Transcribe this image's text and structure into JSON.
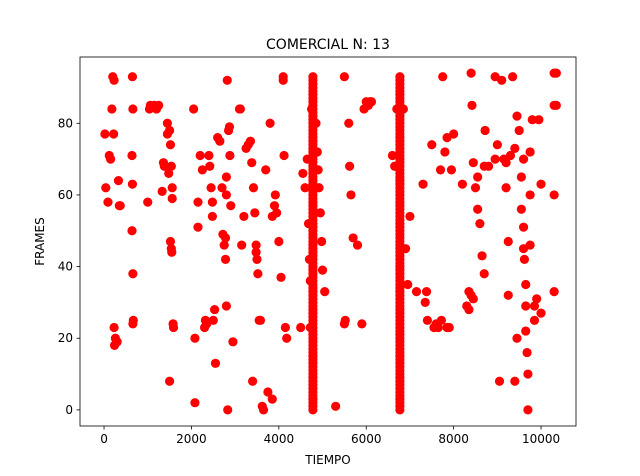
{
  "chart_data": {
    "type": "scatter",
    "title": "COMERCIAL N: 13",
    "xlabel": "TIEMPO",
    "ylabel": "FRAMES",
    "xlim": [
      -550,
      10800
    ],
    "ylim": [
      -4.5,
      98.5
    ],
    "xticks": [
      0,
      2000,
      4000,
      6000,
      8000,
      10000
    ],
    "yticks": [
      0,
      20,
      40,
      60,
      80
    ],
    "grid": false,
    "marker_color": "#ff0000",
    "columns": [
      {
        "x": 4780,
        "y_from": 0,
        "y_to": 93
      },
      {
        "x": 6770,
        "y_from": 0,
        "y_to": 93
      }
    ],
    "points": [
      [
        20,
        77
      ],
      [
        40,
        62
      ],
      [
        90,
        58
      ],
      [
        120,
        71
      ],
      [
        150,
        70
      ],
      [
        180,
        84
      ],
      [
        220,
        77
      ],
      [
        200,
        93
      ],
      [
        230,
        92
      ],
      [
        230,
        23
      ],
      [
        240,
        18
      ],
      [
        260,
        20
      ],
      [
        300,
        19
      ],
      [
        330,
        64
      ],
      [
        350,
        57
      ],
      [
        370,
        57
      ],
      [
        650,
        93
      ],
      [
        660,
        84
      ],
      [
        640,
        71
      ],
      [
        650,
        63
      ],
      [
        640,
        50
      ],
      [
        660,
        38
      ],
      [
        670,
        25
      ],
      [
        660,
        24
      ],
      [
        1000,
        58
      ],
      [
        1040,
        84
      ],
      [
        1060,
        85
      ],
      [
        1150,
        85
      ],
      [
        1200,
        84
      ],
      [
        1250,
        85
      ],
      [
        1330,
        61
      ],
      [
        1360,
        69
      ],
      [
        1380,
        68
      ],
      [
        1450,
        80
      ],
      [
        1450,
        77
      ],
      [
        1480,
        66
      ],
      [
        1500,
        78
      ],
      [
        1520,
        74
      ],
      [
        1540,
        68
      ],
      [
        1560,
        62
      ],
      [
        1560,
        59
      ],
      [
        1520,
        47
      ],
      [
        1540,
        45
      ],
      [
        1550,
        44
      ],
      [
        1580,
        24
      ],
      [
        1590,
        23
      ],
      [
        1500,
        8
      ],
      [
        2050,
        84
      ],
      [
        2080,
        20
      ],
      [
        2080,
        2
      ],
      [
        2150,
        58
      ],
      [
        2150,
        51
      ],
      [
        2200,
        71
      ],
      [
        2250,
        67
      ],
      [
        2300,
        23
      ],
      [
        2320,
        25
      ],
      [
        2350,
        24
      ],
      [
        2400,
        71
      ],
      [
        2420,
        68
      ],
      [
        2450,
        62
      ],
      [
        2480,
        58
      ],
      [
        2480,
        54
      ],
      [
        2500,
        25
      ],
      [
        2530,
        28
      ],
      [
        2550,
        13
      ],
      [
        2600,
        76
      ],
      [
        2650,
        75
      ],
      [
        2700,
        62
      ],
      [
        2720,
        49
      ],
      [
        2750,
        46
      ],
      [
        2780,
        48
      ],
      [
        2780,
        42
      ],
      [
        2800,
        65
      ],
      [
        2800,
        60
      ],
      [
        2800,
        29
      ],
      [
        2820,
        92
      ],
      [
        2830,
        0
      ],
      [
        2850,
        78
      ],
      [
        2870,
        79
      ],
      [
        2880,
        71
      ],
      [
        2900,
        57
      ],
      [
        2950,
        19
      ],
      [
        3100,
        84
      ],
      [
        3120,
        84
      ],
      [
        3150,
        46
      ],
      [
        3200,
        54
      ],
      [
        3250,
        73
      ],
      [
        3300,
        74
      ],
      [
        3350,
        75
      ],
      [
        3380,
        69
      ],
      [
        3400,
        8
      ],
      [
        3420,
        62
      ],
      [
        3450,
        55
      ],
      [
        3480,
        46
      ],
      [
        3480,
        44
      ],
      [
        3500,
        42
      ],
      [
        3520,
        38
      ],
      [
        3550,
        25
      ],
      [
        3580,
        25
      ],
      [
        3620,
        1
      ],
      [
        3650,
        0
      ],
      [
        3700,
        67
      ],
      [
        3750,
        5
      ],
      [
        3800,
        80
      ],
      [
        3850,
        54
      ],
      [
        3850,
        3
      ],
      [
        3900,
        57
      ],
      [
        3920,
        60
      ],
      [
        3950,
        55
      ],
      [
        4000,
        47
      ],
      [
        4050,
        37
      ],
      [
        4100,
        92
      ],
      [
        4100,
        93
      ],
      [
        4120,
        71
      ],
      [
        4150,
        23
      ],
      [
        4180,
        20
      ],
      [
        4500,
        23
      ],
      [
        4550,
        66
      ],
      [
        4600,
        62
      ],
      [
        4650,
        70
      ],
      [
        4680,
        52
      ],
      [
        4700,
        42
      ],
      [
        4720,
        36
      ],
      [
        4720,
        23
      ],
      [
        4750,
        84
      ],
      [
        4850,
        80
      ],
      [
        4880,
        72
      ],
      [
        4900,
        67
      ],
      [
        4920,
        62
      ],
      [
        4950,
        55
      ],
      [
        4980,
        47
      ],
      [
        5000,
        39
      ],
      [
        5050,
        33
      ],
      [
        5300,
        1
      ],
      [
        5500,
        93
      ],
      [
        5500,
        24
      ],
      [
        5520,
        25
      ],
      [
        5600,
        80
      ],
      [
        5620,
        68
      ],
      [
        5650,
        60
      ],
      [
        5700,
        48
      ],
      [
        5800,
        46
      ],
      [
        5900,
        24
      ],
      [
        5950,
        84
      ],
      [
        6000,
        86
      ],
      [
        6050,
        85
      ],
      [
        6080,
        86
      ],
      [
        6120,
        86
      ],
      [
        6600,
        71
      ],
      [
        6650,
        68
      ],
      [
        6700,
        84
      ],
      [
        6850,
        84
      ],
      [
        6900,
        45
      ],
      [
        6950,
        35
      ],
      [
        7000,
        54
      ],
      [
        7150,
        33
      ],
      [
        7300,
        63
      ],
      [
        7350,
        30
      ],
      [
        7380,
        33
      ],
      [
        7400,
        25
      ],
      [
        7500,
        74
      ],
      [
        7550,
        23
      ],
      [
        7600,
        24
      ],
      [
        7650,
        23
      ],
      [
        7700,
        67
      ],
      [
        7720,
        25
      ],
      [
        7750,
        93
      ],
      [
        7800,
        72
      ],
      [
        7850,
        76
      ],
      [
        7850,
        23
      ],
      [
        7900,
        23
      ],
      [
        7950,
        67
      ],
      [
        8000,
        77
      ],
      [
        8200,
        63
      ],
      [
        8300,
        29
      ],
      [
        8350,
        28
      ],
      [
        8350,
        33
      ],
      [
        8400,
        94
      ],
      [
        8420,
        85
      ],
      [
        8450,
        69
      ],
      [
        8500,
        62
      ],
      [
        8550,
        56
      ],
      [
        8600,
        52
      ],
      [
        8650,
        43
      ],
      [
        8700,
        38
      ],
      [
        8400,
        32
      ],
      [
        8450,
        31
      ],
      [
        8700,
        68
      ],
      [
        8720,
        78
      ],
      [
        8550,
        65
      ],
      [
        8800,
        68
      ],
      [
        8950,
        93
      ],
      [
        8950,
        70
      ],
      [
        9000,
        74
      ],
      [
        9050,
        8
      ],
      [
        9100,
        92
      ],
      [
        9150,
        70
      ],
      [
        9200,
        69
      ],
      [
        9200,
        62
      ],
      [
        9250,
        47
      ],
      [
        9250,
        32
      ],
      [
        9300,
        71
      ],
      [
        9350,
        93
      ],
      [
        9400,
        8
      ],
      [
        9400,
        73
      ],
      [
        9450,
        82
      ],
      [
        9450,
        20
      ],
      [
        9500,
        78
      ],
      [
        9550,
        65
      ],
      [
        9550,
        56
      ],
      [
        9600,
        70
      ],
      [
        9600,
        51
      ],
      [
        9600,
        45
      ],
      [
        9620,
        42
      ],
      [
        9650,
        35
      ],
      [
        9650,
        29
      ],
      [
        9650,
        22
      ],
      [
        9680,
        16
      ],
      [
        9700,
        10
      ],
      [
        9700,
        0
      ],
      [
        9750,
        72
      ],
      [
        9750,
        60
      ],
      [
        9750,
        46
      ],
      [
        9800,
        81
      ],
      [
        9850,
        25
      ],
      [
        9850,
        29
      ],
      [
        9900,
        31
      ],
      [
        9950,
        81
      ],
      [
        10000,
        63
      ],
      [
        10000,
        27
      ],
      [
        10300,
        94
      ],
      [
        10300,
        85
      ],
      [
        10300,
        60
      ],
      [
        10300,
        33
      ],
      [
        10350,
        94
      ],
      [
        10350,
        85
      ]
    ]
  }
}
